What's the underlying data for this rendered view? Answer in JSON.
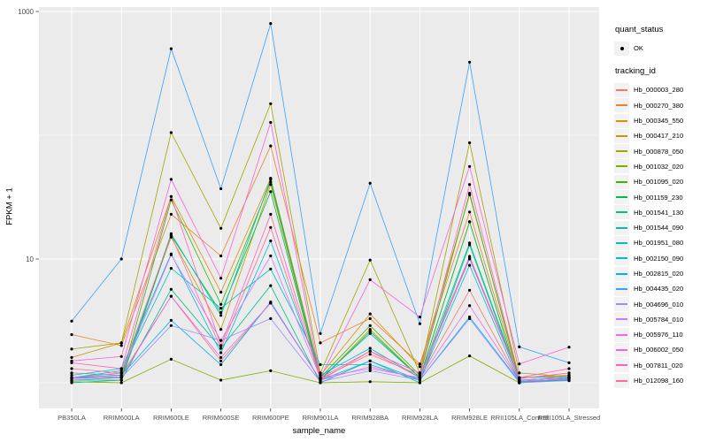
{
  "figure": {
    "background": "#FFFFFF",
    "panel_background": "#EBEBEB",
    "gridline_color": "#FFFFFF",
    "tick_label_color": "#4D4D4D",
    "point_color": "#000000"
  },
  "legend": {
    "quant_status_title": "quant_status",
    "quant_status_items": [
      {
        "label": "OK",
        "symbol": "point"
      }
    ],
    "tracking_id_title": "tracking_id",
    "key_background": "#F2F2F2",
    "position": "right"
  },
  "chart_data": {
    "type": "line",
    "title": "",
    "xlabel": "sample_name",
    "ylabel": "FPKM + 1",
    "y_scale": "log10",
    "y_axis_ticks": [
      10,
      1000
    ],
    "y_minor_gridlines": [
      1,
      100
    ],
    "ylim": [
      0.6,
      1100
    ],
    "grid": true,
    "legend_position": "right",
    "categories": [
      "PB350LA",
      "RRIM600LA",
      "RRIM600LE",
      "RRIM600SE",
      "RRIM600PE",
      "RRIM901LA",
      "RRIM928BA",
      "RRIM928LA",
      "RRIM928LE",
      "RRII105LA_Control",
      "RRII105LA_Stressed"
    ],
    "series": [
      {
        "name": "Hb_000003_280",
        "color": "#F8766D",
        "values": [
          1.2,
          1.15,
          5.0,
          1.5,
          4.4,
          1.05,
          1.8,
          1.1,
          5.6,
          1.02,
          1.15
        ]
      },
      {
        "name": "Hb_000270_380",
        "color": "#EA8331",
        "values": [
          2.45,
          2.0,
          23,
          10.6,
          82,
          2.1,
          3.3,
          1.42,
          24,
          1.05,
          1.1
        ]
      },
      {
        "name": "Hb_000345_550",
        "color": "#D89000",
        "values": [
          1.6,
          2.1,
          32,
          5.4,
          45,
          1.15,
          3.6,
          1.35,
          33,
          1.1,
          1.15
        ]
      },
      {
        "name": "Hb_000417_210",
        "color": "#C09B00",
        "values": [
          1.1,
          1.2,
          15,
          2.7,
          40,
          1.05,
          2.7,
          1.1,
          20,
          1.0,
          1.1
        ]
      },
      {
        "name": "Hb_000878_050",
        "color": "#A3A500",
        "values": [
          1.87,
          2.1,
          105,
          17.7,
          180,
          1.2,
          9.8,
          1.2,
          87,
          1.2,
          1.12
        ]
      },
      {
        "name": "Hb_001032_020",
        "color": "#7CAE00",
        "values": [
          1.02,
          1.0,
          1.55,
          1.05,
          1.25,
          1.0,
          1.02,
          1.0,
          1.65,
          1.0,
          1.05
        ]
      },
      {
        "name": "Hb_001095_020",
        "color": "#39B600",
        "values": [
          1.1,
          1.1,
          30,
          4.3,
          42,
          1.1,
          2.9,
          1.15,
          34,
          1.05,
          1.1
        ]
      },
      {
        "name": "Hb_001159_230",
        "color": "#00BB4E",
        "values": [
          1.05,
          1.05,
          15.5,
          3.7,
          35,
          1.05,
          2.6,
          1.1,
          20,
          1.0,
          1.08
        ]
      },
      {
        "name": "Hb_001541_130",
        "color": "#00C087",
        "values": [
          1.0,
          1.05,
          5.7,
          1.9,
          6.1,
          1.0,
          1.5,
          1.0,
          13,
          1.02,
          1.05
        ]
      },
      {
        "name": "Hb_001544_090",
        "color": "#00C1A3",
        "values": [
          1.05,
          1.1,
          16,
          3.5,
          44,
          1.08,
          2.5,
          1.1,
          13.5,
          1.05,
          1.1
        ]
      },
      {
        "name": "Hb_001951_080",
        "color": "#00BFC4",
        "values": [
          1.1,
          1.25,
          8.4,
          4.0,
          8.3,
          1.4,
          1.4,
          1.05,
          8.9,
          1.0,
          1.08
        ]
      },
      {
        "name": "Hb_002150_090",
        "color": "#00BAE0",
        "values": [
          1.15,
          1.3,
          11,
          1.75,
          14,
          1.15,
          1.9,
          1.1,
          10.2,
          1.1,
          1.12
        ]
      },
      {
        "name": "Hb_002815_020",
        "color": "#00B0F6",
        "values": [
          1.1,
          1.15,
          3.2,
          1.4,
          4.5,
          1.05,
          1.5,
          1.05,
          3.4,
          1.02,
          1.06
        ]
      },
      {
        "name": "Hb_004435_020",
        "color": "#35A2FF",
        "values": [
          3.15,
          10.0,
          500,
          37,
          800,
          2.5,
          41,
          3.0,
          390,
          1.95,
          1.45
        ]
      },
      {
        "name": "Hb_004696_010",
        "color": "#9590FF",
        "values": [
          1.05,
          1.1,
          2.9,
          2.2,
          3.3,
          1.02,
          1.25,
          1.05,
          3.3,
          1.0,
          1.04
        ]
      },
      {
        "name": "Hb_005784_010",
        "color": "#C77CFF",
        "values": [
          1.1,
          1.2,
          10.8,
          2.2,
          10.6,
          1.1,
          1.3,
          1.1,
          10.0,
          1.05,
          1.1
        ]
      },
      {
        "name": "Hb_005976_110",
        "color": "#E76BF3",
        "values": [
          1.08,
          1.12,
          5.0,
          1.6,
          4.4,
          1.05,
          1.35,
          1.08,
          4.2,
          1.03,
          1.07
        ]
      },
      {
        "name": "Hb_006002_050",
        "color": "#FA62DB",
        "values": [
          1.5,
          1.63,
          44,
          7.0,
          127,
          1.1,
          6.8,
          3.4,
          56,
          1.42,
          1.94
        ]
      },
      {
        "name": "Hb_007811_020",
        "color": "#FF62BC",
        "values": [
          1.45,
          1.3,
          32,
          2.0,
          23,
          1.1,
          1.8,
          1.2,
          40,
          1.1,
          1.3
        ]
      },
      {
        "name": "Hb_012098_160",
        "color": "#FF6A98",
        "values": [
          1.3,
          1.2,
          15.5,
          1.9,
          18,
          1.08,
          1.7,
          1.15,
          10.5,
          1.08,
          1.2
        ]
      }
    ]
  }
}
